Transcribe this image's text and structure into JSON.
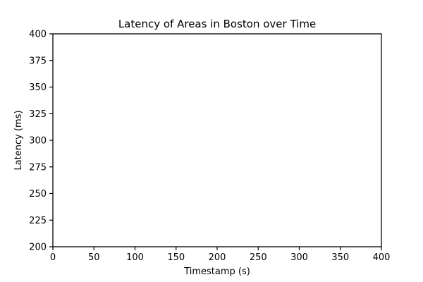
{
  "chart_data": {
    "type": "line",
    "title": "Latency of Areas in Boston over Time",
    "xlabel": "Timestamp (s)",
    "ylabel": "Latency (ms)",
    "xlim": [
      0,
      400
    ],
    "ylim": [
      200,
      400
    ],
    "xticks": [
      0,
      50,
      100,
      150,
      200,
      250,
      300,
      350,
      400
    ],
    "yticks": [
      200,
      225,
      250,
      275,
      300,
      325,
      350,
      375,
      400
    ],
    "grid": false,
    "series": []
  }
}
